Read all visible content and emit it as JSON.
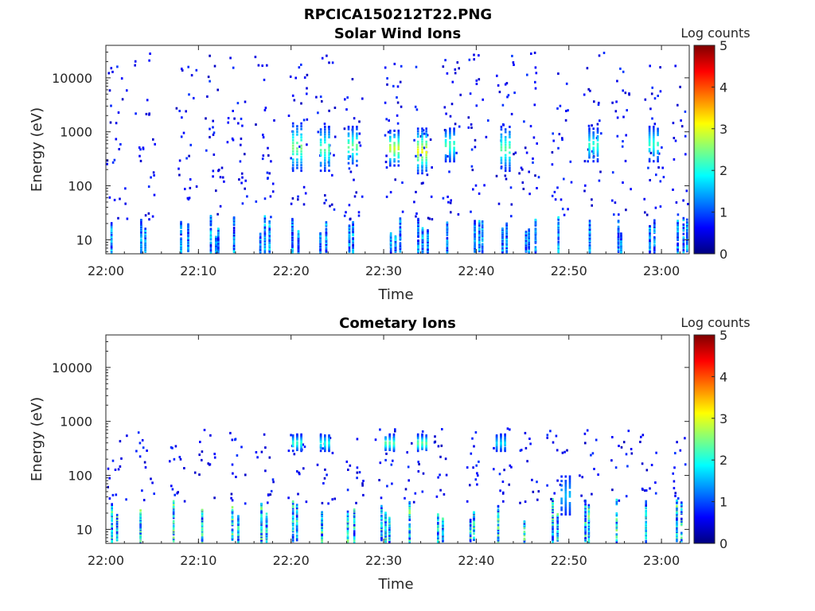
{
  "figure_title": "RPCICA150212T22.PNG",
  "chart_data": [
    {
      "type": "heatmap",
      "title": "Solar Wind Ions",
      "xlabel": "Time",
      "ylabel": "Energy (eV)",
      "x_range": [
        "22:00",
        "23:03"
      ],
      "x_ticks": [
        "22:00",
        "22:10",
        "22:20",
        "22:30",
        "22:40",
        "22:50",
        "23:00"
      ],
      "y_scale": "log",
      "y_range": [
        5.5,
        40000
      ],
      "y_ticks": [
        10,
        100,
        1000,
        10000
      ],
      "y_tick_labels": [
        "10",
        "100",
        "1000",
        "10000"
      ],
      "colorbar": {
        "label": "Log counts",
        "range": [
          0,
          5
        ],
        "ticks": [
          "0",
          "1",
          "2",
          "3",
          "4",
          "5"
        ],
        "colormap": "jet"
      },
      "scan_times_min": [
        1,
        4,
        8.5,
        11.5,
        14,
        17,
        20.5,
        23.5,
        26.5,
        31,
        34,
        37,
        40,
        43,
        45.5,
        49,
        52.5,
        55.5,
        59,
        62
      ],
      "bursts": [
        {
          "t_min": 20.5,
          "e_low_ev": 200,
          "e_high_ev": 1500,
          "peak_log_counts": 2.6
        },
        {
          "t_min": 23.5,
          "e_low_ev": 200,
          "e_high_ev": 1300,
          "peak_log_counts": 2.4
        },
        {
          "t_min": 26.5,
          "e_low_ev": 250,
          "e_high_ev": 1300,
          "peak_log_counts": 2.5
        },
        {
          "t_min": 31,
          "e_low_ev": 250,
          "e_high_ev": 1100,
          "peak_log_counts": 3.0
        },
        {
          "t_min": 34,
          "e_low_ev": 180,
          "e_high_ev": 1200,
          "peak_log_counts": 3.2
        },
        {
          "t_min": 37,
          "e_low_ev": 300,
          "e_high_ev": 1200,
          "peak_log_counts": 2.3
        },
        {
          "t_min": 43,
          "e_low_ev": 200,
          "e_high_ev": 1300,
          "peak_log_counts": 2.4
        },
        {
          "t_min": 52.5,
          "e_low_ev": 300,
          "e_high_ev": 1200,
          "peak_log_counts": 2.2
        },
        {
          "t_min": 59,
          "e_low_ev": 300,
          "e_high_ev": 1300,
          "peak_log_counts": 2.2
        }
      ]
    },
    {
      "type": "heatmap",
      "title": "Cometary Ions",
      "xlabel": "Time",
      "ylabel": "Energy (eV)",
      "x_range": [
        "22:00",
        "23:03"
      ],
      "x_ticks": [
        "22:00",
        "22:10",
        "22:20",
        "22:30",
        "22:40",
        "22:50",
        "23:00"
      ],
      "y_scale": "log",
      "y_range": [
        5.5,
        40000
      ],
      "y_ticks": [
        10,
        100,
        1000,
        10000
      ],
      "y_tick_labels": [
        "10",
        "100",
        "1000",
        "10000"
      ],
      "colorbar": {
        "label": "Log counts",
        "range": [
          0,
          5
        ],
        "ticks": [
          "0",
          "1",
          "2",
          "3",
          "4",
          "5"
        ],
        "colormap": "jet"
      },
      "scan_times_min": [
        1,
        4,
        7.5,
        10.5,
        14,
        17,
        20.5,
        23.5,
        26.5,
        30,
        33,
        36,
        39.5,
        42.5,
        45.5,
        48.5,
        52,
        55.5,
        58.5,
        62
      ],
      "bursts": [
        {
          "t_min": 20.5,
          "e_low_ev": 300,
          "e_high_ev": 600,
          "peak_log_counts": 2.2
        },
        {
          "t_min": 23.5,
          "e_low_ev": 300,
          "e_high_ev": 600,
          "peak_log_counts": 2.1
        },
        {
          "t_min": 30.5,
          "e_low_ev": 300,
          "e_high_ev": 600,
          "peak_log_counts": 2.4
        },
        {
          "t_min": 34,
          "e_low_ev": 300,
          "e_high_ev": 600,
          "peak_log_counts": 2.5
        },
        {
          "t_min": 42.5,
          "e_low_ev": 300,
          "e_high_ev": 600,
          "peak_log_counts": 1.8
        },
        {
          "t_min": 49.5,
          "e_low_ev": 20,
          "e_high_ev": 100,
          "peak_log_counts": 1.6
        }
      ]
    }
  ]
}
